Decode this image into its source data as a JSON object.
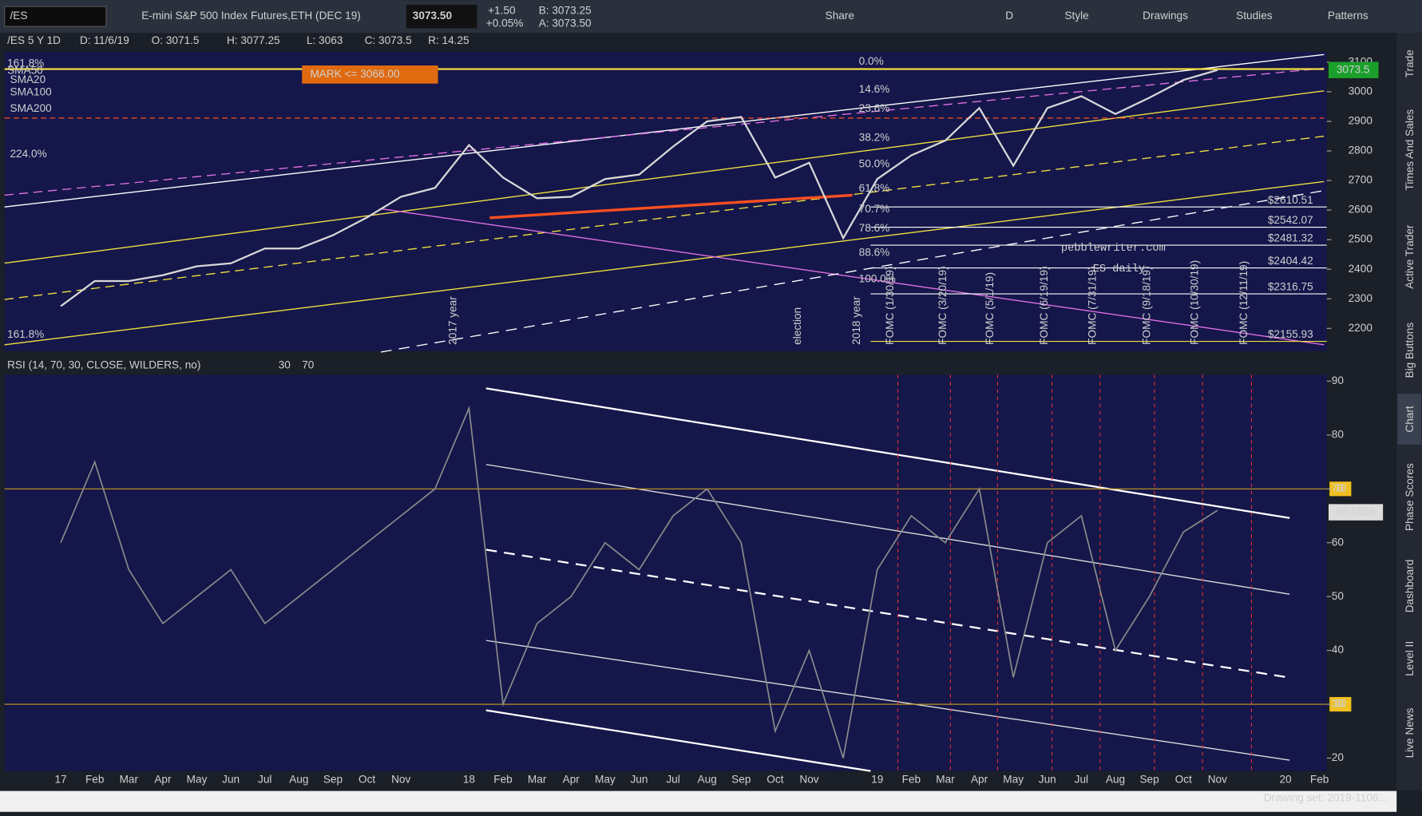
{
  "toolbar": {
    "symbol": "/ES",
    "description": "E-mini S&P 500 Index Futures,ETH (DEC 19)",
    "last": "3073.50",
    "change": "+1.50",
    "change_pct": "+0.05%",
    "bid": "B: 3073.25",
    "ask": "A: 3073.50",
    "buttons": [
      "Share",
      "D",
      "Style",
      "Drawings",
      "Studies",
      "Patterns"
    ]
  },
  "info_bar": [
    "/ES 5 Y 1D",
    "D: 11/6/19",
    "O: 3071.5",
    "H: 3077.25",
    "L: 3063",
    "C: 3073.5",
    "R: 14.25"
  ],
  "legend": [
    "161.8%",
    "SMA50",
    "SMA20",
    "SMA100",
    "SMA200",
    "224.0%",
    "161.8%"
  ],
  "mark_order": "MARK <= 3066.00",
  "watermark": [
    "pebblewriter.com",
    "ES daily"
  ],
  "fib_labels": [
    "0.0%",
    "14.6%",
    "23.6%",
    "38.2%",
    "50.0%",
    "61.8%",
    "70.7%",
    "78.6%",
    "88.6%",
    "100.0%"
  ],
  "event_labels": [
    "election",
    "2017 year",
    "2018 year",
    "FOMC (1/30/19)",
    "FOMC (3/20/19)",
    "FOMC (5/1/19)",
    "FOMC (6/19/19)",
    "FOMC (7/31/19)",
    "FOMC (9/18/19)",
    "FOMC (10/30/19)",
    "FOMC (12/11/19)"
  ],
  "chart_data": [
    {
      "type": "line",
      "series": [
        {
          "color": "#d8d8d8",
          "values": [
            2275,
            2360,
            2360,
            2380,
            2410,
            2420,
            2470,
            2470,
            2515,
            2575,
            2645,
            2675,
            2820,
            2710,
            2640,
            2645,
            2705,
            2720,
            2815,
            2900,
            2915,
            2710,
            2760,
            2505,
            2705,
            2785,
            2835,
            2945,
            2750,
            2945,
            2985,
            2925,
            2980,
            3040,
            3073.5,
            null,
            null,
            null
          ]
        }
      ],
      "ylim": [
        2123,
        3135
      ],
      "yticks": [
        2200,
        2300,
        2400,
        2500,
        2600,
        2700,
        2800,
        2900,
        3000,
        3100
      ],
      "price_levels": [
        {
          "value": 2610.51,
          "label": "$2610.51"
        },
        {
          "value": 2542.07,
          "label": "$2542.07"
        },
        {
          "value": 2481.32,
          "label": "$2481.32"
        },
        {
          "value": 2404.42,
          "label": "$2404.42"
        },
        {
          "value": 2316.75,
          "label": "$2316.75"
        },
        {
          "value": 2155.93,
          "label": "$2155.93"
        }
      ],
      "current": {
        "value": 3073.5,
        "label": "3073.5"
      }
    },
    {
      "type": "line",
      "title": "RSI (14, 70, 30, CLOSE, WILDERS, no)",
      "categories": [
        "17",
        "Feb",
        "Mar",
        "Apr",
        "May",
        "Jun",
        "Jul",
        "Aug",
        "Sep",
        "Oct",
        "Nov",
        null,
        "18",
        "Feb",
        "Mar",
        "Apr",
        "May",
        "Jun",
        "Jul",
        "Aug",
        "Sep",
        "Oct",
        "Nov",
        null,
        "19",
        "Feb",
        "Mar",
        "Apr",
        "May",
        "Jun",
        "Jul",
        "Aug",
        "Sep",
        "Oct",
        "Nov",
        null,
        "20",
        "Feb"
      ],
      "series": [
        {
          "color": "#8a8a8a",
          "values": [
            60,
            75,
            55,
            45,
            50,
            55,
            45,
            50,
            55,
            60,
            65,
            70,
            85,
            30,
            45,
            50,
            60,
            55,
            65,
            70,
            60,
            25,
            40,
            20,
            55,
            65,
            60,
            70,
            35,
            60,
            65,
            40,
            50,
            62,
            66,
            null,
            null,
            null
          ]
        }
      ],
      "ylim": [
        17.6,
        91.2
      ],
      "yticks": [
        20,
        30,
        40,
        50,
        60,
        70,
        80,
        90
      ],
      "ref_lines": [
        {
          "value": 30,
          "label": "30"
        },
        {
          "value": 70,
          "label": "70"
        }
      ],
      "current": {
        "value": 65.6556,
        "label": "65.6556"
      }
    }
  ],
  "side_tabs": [
    "Trade",
    "Times And Sales",
    "Active Trader",
    "Big Buttons",
    "Chart",
    "Phase Scores",
    "Dashboard",
    "Level II",
    "Live News"
  ],
  "footer": "Drawing set: 2019-1106..."
}
